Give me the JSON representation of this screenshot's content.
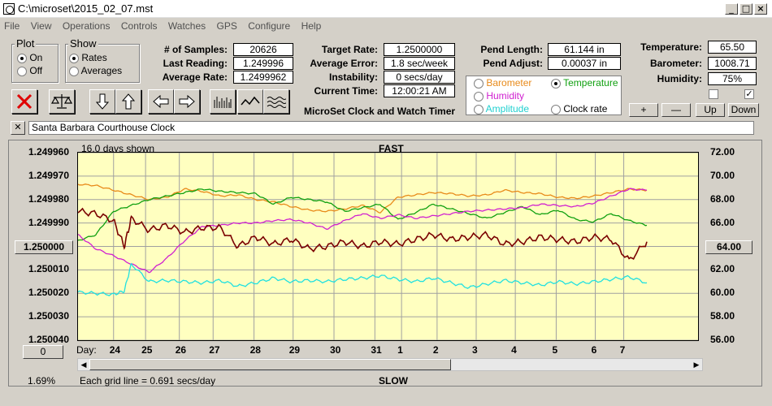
{
  "window": {
    "title": "C:\\microset\\2015_02_07.mst"
  },
  "menu": [
    "File",
    "View",
    "Operations",
    "Controls",
    "Watches",
    "GPS",
    "Configure",
    "Help"
  ],
  "plot_group": {
    "label": "Plot",
    "on": "On",
    "off": "Off"
  },
  "show_group": {
    "label": "Show",
    "rates": "Rates",
    "averages": "Averages"
  },
  "stats": {
    "samples_label": "# of Samples:",
    "samples": "20626",
    "last_reading_label": "Last Reading:",
    "last_reading": "1.249996",
    "avg_rate_label": "Average Rate:",
    "avg_rate": "1.2499962",
    "target_rate_label": "Target Rate:",
    "target_rate": "1.2500000",
    "avg_error_label": "Average Error:",
    "avg_error": "1.8 sec/week",
    "instability_label": "Instability:",
    "instability": "0 secs/day",
    "current_time_label": "Current Time:",
    "current_time": "12:00:21 AM",
    "pend_length_label": "Pend Length:",
    "pend_length": "61.144 in",
    "pend_adjust_label": "Pend Adjust:",
    "pend_adjust": "0.00037 in",
    "temperature_label": "Temperature:",
    "temperature": "65.50",
    "barometer_label": "Barometer:",
    "barometer": "1008.71",
    "humidity_label": "Humidity:",
    "humidity": "75%"
  },
  "app_caption": "MicroSet Clock and Watch Timer",
  "sensors": {
    "barometer": "Barometer",
    "temperature": "Temperature",
    "humidity": "Humidity",
    "amplitude": "Amplitude",
    "clock_rate": "Clock rate"
  },
  "adjust_buttons": {
    "plus": "+",
    "minus": "—",
    "up": "Up",
    "down": "Down"
  },
  "checkbox2": "✓",
  "close_x": "✕",
  "clock_name": "Santa Barbara Courthouse Clock",
  "chart_header": {
    "days_shown": "16.0 days shown",
    "fast": "FAST",
    "slow": "SLOW",
    "day_label": "Day:",
    "grid_note": "Each grid line = 0.691 secs/day",
    "percent": "1.69%"
  },
  "center_left_button": "1.250000",
  "center_right_button": "64.00",
  "bottom_left_button": "0",
  "colors": {
    "barometer": "#e88a1a",
    "temperature": "#10a010",
    "humidity": "#d020d0",
    "amplitude": "#20e0e0",
    "rate": "#7a0000",
    "plot_bg": "#ffffc0"
  },
  "chart_data": {
    "type": "line",
    "y_left_ticks": [
      "1.249960",
      "1.249970",
      "1.249980",
      "1.249990",
      "1.250000",
      "1.250010",
      "1.250020",
      "1.250030",
      "1.250040"
    ],
    "y_right_ticks": [
      "72.00",
      "70.00",
      "68.00",
      "66.00",
      "64.00",
      "62.00",
      "60.00",
      "58.00",
      "56.00"
    ],
    "ylim_left": [
      1.25004,
      1.24996
    ],
    "ylim_right": [
      56,
      72
    ],
    "x_ticks": [
      "24",
      "25",
      "26",
      "27",
      "28",
      "29",
      "30",
      "31",
      "1",
      "2",
      "3",
      "4",
      "5",
      "6",
      "7"
    ],
    "x_tick_days": [
      1.0,
      1.9,
      2.85,
      3.8,
      4.95,
      6.05,
      7.2,
      8.35,
      9.1,
      10.1,
      11.2,
      12.3,
      13.45,
      14.55,
      15.35
    ],
    "xlim": [
      0,
      16.0
    ],
    "series": [
      {
        "name": "Barometer",
        "color": "#e88a1a",
        "axis": "right",
        "x": [
          0,
          0.5,
          1,
          1.5,
          2,
          2.5,
          3,
          3.5,
          4,
          4.5,
          5,
          5.5,
          6,
          6.5,
          7,
          7.5,
          8,
          8.5,
          9,
          9.5,
          10,
          10.5,
          11,
          11.5,
          12,
          12.5,
          13,
          13.5,
          14,
          14.5,
          15,
          15.5,
          16
        ],
        "y": [
          69.3,
          69.2,
          68.8,
          68.4,
          68.0,
          68.2,
          68.9,
          68.7,
          68.3,
          68.4,
          68.0,
          67.8,
          67.4,
          67.1,
          67.0,
          67.2,
          67.5,
          66.9,
          68.2,
          68.4,
          68.6,
          68.5,
          68.3,
          68.4,
          68.8,
          68.6,
          68.5,
          68.2,
          68.1,
          68.3,
          68.6,
          68.9,
          68.8
        ]
      },
      {
        "name": "Temperature",
        "color": "#10a010",
        "axis": "right",
        "x": [
          0,
          0.5,
          1,
          1.5,
          2,
          2.5,
          3,
          3.5,
          4,
          4.5,
          5,
          5.5,
          6,
          6.5,
          7,
          7.5,
          8,
          8.5,
          9,
          9.5,
          10,
          10.5,
          11,
          11.5,
          12,
          12.5,
          13,
          13.5,
          14,
          14.5,
          15,
          15.5,
          16
        ],
        "y": [
          64.5,
          65.0,
          67.0,
          67.5,
          68.0,
          68.3,
          68.6,
          68.9,
          68.7,
          68.6,
          68.5,
          67.6,
          68.2,
          68.0,
          67.8,
          67.0,
          67.3,
          67.6,
          66.3,
          66.9,
          67.6,
          67.2,
          66.8,
          66.4,
          66.9,
          67.4,
          66.7,
          67.1,
          66.3,
          66.1,
          66.8,
          66.2,
          65.8
        ]
      },
      {
        "name": "Humidity",
        "color": "#d020d0",
        "axis": "right",
        "x": [
          0,
          0.5,
          1,
          1.5,
          2,
          2.5,
          3,
          3.5,
          4,
          4.5,
          5,
          5.5,
          6,
          6.5,
          7,
          7.5,
          8,
          8.5,
          9,
          9.5,
          10,
          10.5,
          11,
          11.5,
          12,
          12.5,
          13,
          13.5,
          14,
          14.5,
          15,
          15.5,
          16
        ],
        "y": [
          65.0,
          63.8,
          63.2,
          62.5,
          61.8,
          63.0,
          64.5,
          65.7,
          65.8,
          66.0,
          66.0,
          66.2,
          66.3,
          66.0,
          65.5,
          66.2,
          66.8,
          66.4,
          66.7,
          66.4,
          66.6,
          66.8,
          67.0,
          67.1,
          67.2,
          67.3,
          67.6,
          67.5,
          67.4,
          67.7,
          68.3,
          68.9,
          68.8
        ]
      },
      {
        "name": "Amplitude",
        "color": "#20e0e0",
        "axis": "right",
        "x": [
          0,
          0.5,
          1,
          1.3,
          1.5,
          2,
          2.5,
          3,
          3.5,
          4,
          4.5,
          5,
          5.5,
          6,
          6.5,
          7,
          7.5,
          8,
          8.5,
          9,
          9.5,
          10,
          10.5,
          11,
          11.5,
          12,
          12.5,
          13,
          13.5,
          14,
          14.5,
          15,
          15.5,
          16
        ],
        "y": [
          60.1,
          60.0,
          59.9,
          60.2,
          62.5,
          61.0,
          61.1,
          61.0,
          60.9,
          61.1,
          60.6,
          60.9,
          61.3,
          61.0,
          61.1,
          61.0,
          61.2,
          61.3,
          61.5,
          61.2,
          61.0,
          61.3,
          60.9,
          60.5,
          60.8,
          61.1,
          60.9,
          60.7,
          61.0,
          60.8,
          61.0,
          61.2,
          61.4,
          60.9
        ]
      },
      {
        "name": "Clock rate",
        "color": "#7a0000",
        "axis": "left",
        "x": [
          0,
          0.5,
          1,
          1.3,
          1.5,
          2,
          2.5,
          3,
          3.5,
          4,
          4.5,
          5,
          5.5,
          6,
          6.5,
          7,
          7.5,
          8,
          8.5,
          9,
          9.5,
          10,
          10.5,
          11,
          11.5,
          12,
          12.5,
          13,
          13.5,
          14,
          14.5,
          15,
          15.5,
          16
        ],
        "y": [
          1.249985,
          1.249986,
          1.249989,
          1.25,
          1.249988,
          1.249993,
          1.249991,
          1.249994,
          1.249992,
          1.249992,
          1.25,
          1.249996,
          1.249999,
          1.249997,
          1.250001,
          1.25,
          1.249998,
          1.25,
          1.249998,
          1.249999,
          1.249997,
          1.249995,
          1.249997,
          1.249996,
          1.249995,
          1.249999,
          1.249998,
          1.249996,
          1.249997,
          1.249998,
          1.249996,
          1.249997,
          1.250006,
          1.249998
        ]
      }
    ]
  }
}
